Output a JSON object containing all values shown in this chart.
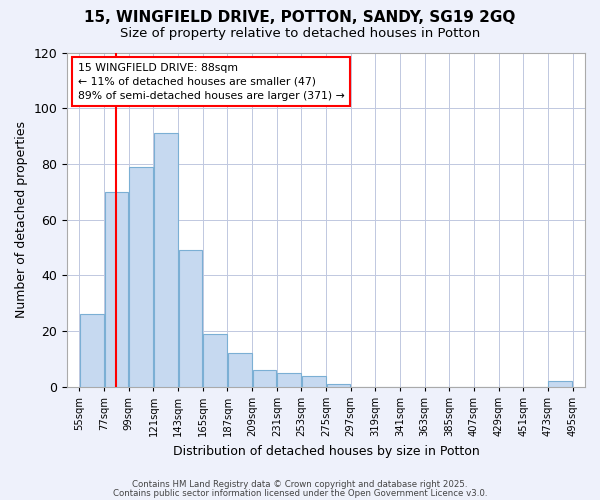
{
  "title_line1": "15, WINGFIELD DRIVE, POTTON, SANDY, SG19 2GQ",
  "title_line2": "Size of property relative to detached houses in Potton",
  "xlabel": "Distribution of detached houses by size in Potton",
  "ylabel": "Number of detached properties",
  "bar_heights": [
    26,
    70,
    79,
    91,
    49,
    19,
    12,
    6,
    5,
    4,
    1,
    0,
    0,
    0,
    0,
    0,
    0,
    0,
    0,
    2
  ],
  "bin_edges": [
    55,
    77,
    99,
    121,
    143,
    165,
    187,
    209,
    231,
    253,
    275,
    297,
    319,
    341,
    363,
    385,
    407,
    429,
    451,
    473,
    495
  ],
  "x_tick_labels": [
    "55sqm",
    "77sqm",
    "99sqm",
    "121sqm",
    "143sqm",
    "165sqm",
    "187sqm",
    "209sqm",
    "231sqm",
    "253sqm",
    "275sqm",
    "297sqm",
    "319sqm",
    "341sqm",
    "363sqm",
    "385sqm",
    "407sqm",
    "429sqm",
    "451sqm",
    "473sqm",
    "495sqm"
  ],
  "bar_color": "#c6d9f0",
  "bar_edge_color": "#7bafd4",
  "red_line_x": 88,
  "ylim": [
    0,
    120
  ],
  "yticks": [
    0,
    20,
    40,
    60,
    80,
    100,
    120
  ],
  "annotation_title": "15 WINGFIELD DRIVE: 88sqm",
  "annotation_line2": "← 11% of detached houses are smaller (47)",
  "annotation_line3": "89% of semi-detached houses are larger (371) →",
  "footer_line1": "Contains HM Land Registry data © Crown copyright and database right 2025.",
  "footer_line2": "Contains public sector information licensed under the Open Government Licence v3.0.",
  "background_color": "#eef1fb",
  "plot_background": "#ffffff"
}
